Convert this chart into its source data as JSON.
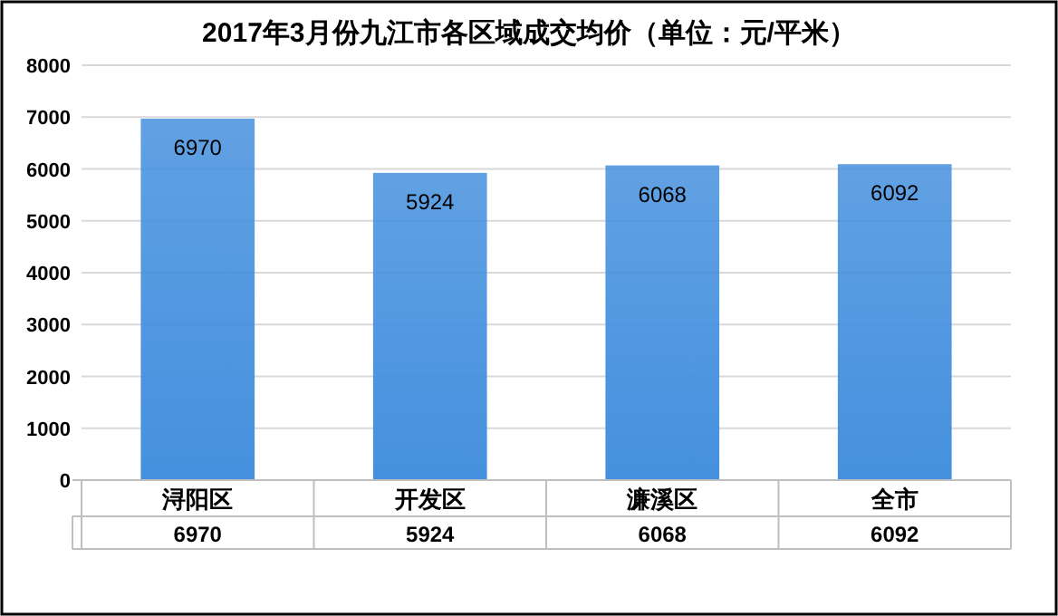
{
  "chart_data": {
    "type": "bar",
    "title": "2017年3月份九江市各区域成交均价（单位：元/平米）",
    "categories": [
      "浔阳区",
      "开发区",
      "濂溪区",
      "全市"
    ],
    "values": [
      6970,
      5924,
      6068,
      6092
    ],
    "value_labels": [
      "6970",
      "5924",
      "6068",
      "6092"
    ],
    "color": "#4590de",
    "ylim": [
      0,
      8000
    ],
    "yticks": [
      0,
      1000,
      2000,
      3000,
      4000,
      5000,
      6000,
      7000,
      8000
    ],
    "grid": "y",
    "annotations": [
      "6970",
      "5924",
      "6068",
      "6092"
    ]
  }
}
